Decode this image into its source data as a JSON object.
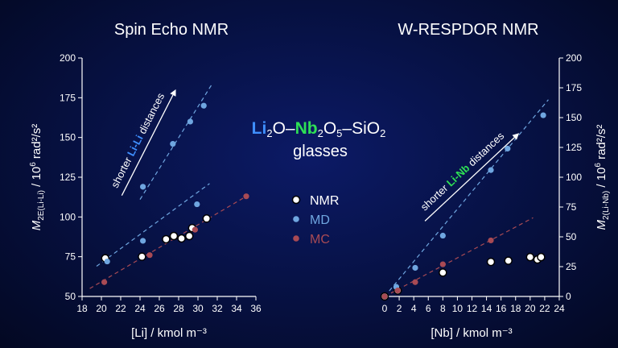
{
  "center_title": {
    "formula": {
      "li": "Li",
      "li_sub": "2",
      "o1": "O–",
      "nb": "Nb",
      "nb_sub": "2",
      "o5": "O",
      "o5_sub": "5",
      "rest": "–SiO",
      "rest_sub": "2"
    },
    "line2": "glasses"
  },
  "legend": {
    "position": "center",
    "items": [
      {
        "label": "NMR",
        "color": "#ffffff"
      },
      {
        "label": "MD",
        "color": "#6fa6e0"
      },
      {
        "label": "MC",
        "color": "#a84a54"
      }
    ]
  },
  "chart_data": [
    {
      "type": "scatter",
      "title": "Spin Echo NMR",
      "xlabel": "[Li] / kmol m⁻³",
      "ylabel": "M2E(Li-Li) / 10⁶ rad²/s²",
      "xlim": [
        18,
        36
      ],
      "ylim": [
        50,
        200
      ],
      "xticks": [
        "18",
        "20",
        "22",
        "24",
        "26",
        "28",
        "30",
        "32",
        "34",
        "36"
      ],
      "yticks": [
        "50",
        "75",
        "100",
        "125",
        "150",
        "175",
        "200"
      ],
      "grid": false,
      "annotation": {
        "pre": "shorter ",
        "hl": "Li-Li",
        "post": " distances",
        "hl_color": "#3f8fff"
      },
      "series": [
        {
          "name": "NMR",
          "color": "#ffffff",
          "points": [
            [
              20.4,
              74
            ],
            [
              24.2,
              75
            ],
            [
              26.7,
              86
            ],
            [
              27.5,
              88
            ],
            [
              28.3,
              86.5
            ],
            [
              29.1,
              88
            ],
            [
              29.4,
              93
            ],
            [
              30.9,
              99
            ]
          ]
        },
        {
          "name": "MD",
          "color": "#6fa6e0",
          "points": [
            [
              20.6,
              72
            ],
            [
              24.3,
              85
            ],
            [
              24.3,
              119
            ],
            [
              27.4,
              146
            ],
            [
              29.2,
              160
            ],
            [
              30.6,
              170
            ],
            [
              29.9,
              108
            ]
          ]
        },
        {
          "name": "MC",
          "color": "#a84a54",
          "points": [
            [
              20.3,
              59
            ],
            [
              25.0,
              76
            ],
            [
              29.7,
              92
            ],
            [
              35.0,
              113
            ]
          ]
        }
      ],
      "fits": [
        {
          "color": "#6fa6e0",
          "from": [
            19.5,
            69
          ],
          "to": [
            31.2,
            121
          ]
        },
        {
          "color": "#6fa6e0",
          "from": [
            24.0,
            111
          ],
          "to": [
            31.5,
            184
          ]
        },
        {
          "color": "#a84a54",
          "from": [
            18.8,
            55
          ],
          "to": [
            35.0,
            113
          ]
        }
      ]
    },
    {
      "type": "scatter",
      "title": "W-RESPDOR NMR",
      "xlabel": "[Nb] / kmol m⁻³",
      "ylabel": "M2(Li-Nb) / 10⁶ rad²/s²",
      "xlim": [
        0,
        24
      ],
      "ylim": [
        0,
        200
      ],
      "xticks": [
        "0",
        "2",
        "4",
        "6",
        "8",
        "10",
        "12",
        "14",
        "16",
        "18",
        "20",
        "22",
        "24"
      ],
      "yticks": [
        "0",
        "25",
        "50",
        "75",
        "100",
        "125",
        "150",
        "175",
        "200"
      ],
      "grid": false,
      "annotation": {
        "pre": "shorter ",
        "hl": "Li-Nb",
        "post": " distances",
        "hl_color": "#2ee055"
      },
      "series": [
        {
          "name": "NMR",
          "color": "#ffffff",
          "points": [
            [
              0,
              0
            ],
            [
              1.8,
              5
            ],
            [
              8.0,
              20
            ],
            [
              14.6,
              29
            ],
            [
              17.0,
              30
            ],
            [
              20.0,
              33
            ],
            [
              21.0,
              31
            ],
            [
              21.5,
              33
            ]
          ]
        },
        {
          "name": "MD",
          "color": "#6fa6e0",
          "points": [
            [
              1.6,
              8
            ],
            [
              4.2,
              24
            ],
            [
              8.0,
              51
            ],
            [
              14.6,
              106
            ],
            [
              16.9,
              124
            ],
            [
              21.8,
              152
            ]
          ]
        },
        {
          "name": "MC",
          "color": "#a84a54",
          "points": [
            [
              0,
              0
            ],
            [
              1.8,
              5
            ],
            [
              4.2,
              12
            ],
            [
              8.0,
              27
            ],
            [
              14.6,
              47
            ]
          ]
        }
      ],
      "fits": [
        {
          "color": "#6fa6e0",
          "from": [
            0,
            0
          ],
          "to": [
            22.5,
            165
          ]
        },
        {
          "color": "#a84a54",
          "from": [
            0,
            0
          ],
          "to": [
            20.4,
            66
          ]
        }
      ]
    }
  ]
}
